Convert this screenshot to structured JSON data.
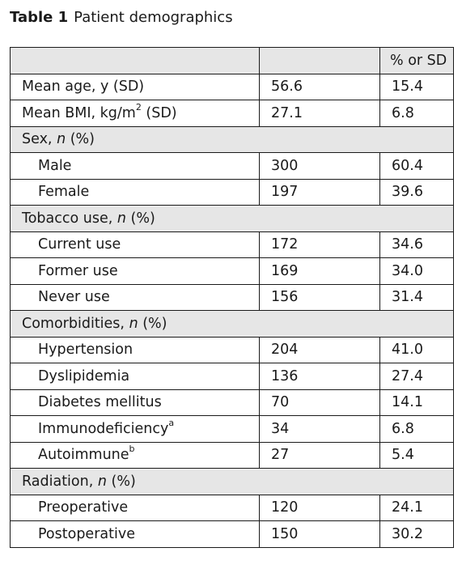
{
  "caption": {
    "number": "Table 1",
    "title": "Patient demographics"
  },
  "header": {
    "col1": "",
    "col2": "",
    "col3": "% or SD"
  },
  "rows": {
    "age": {
      "label": "Mean age, y (SD)",
      "value": "56.6",
      "pct": "15.4"
    },
    "bmi": {
      "label_pre": "Mean BMI, kg/m",
      "label_sup": "2",
      "label_post": " (SD)",
      "value": "27.1",
      "pct": "6.8"
    },
    "sex": {
      "label": "Sex, ",
      "n": "n",
      "suffix": " (%)"
    },
    "male": {
      "label": "Male",
      "value": "300",
      "pct": "60.4"
    },
    "female": {
      "label": "Female",
      "value": "197",
      "pct": "39.6"
    },
    "tobacco": {
      "label": "Tobacco use, ",
      "n": "n",
      "suffix": " (%)"
    },
    "current": {
      "label": "Current use",
      "value": "172",
      "pct": "34.6"
    },
    "former": {
      "label": "Former use",
      "value": "169",
      "pct": "34.0"
    },
    "never": {
      "label": "Never use",
      "value": "156",
      "pct": "31.4"
    },
    "comorb": {
      "label": "Comorbidities, ",
      "n": "n",
      "suffix": " (%)"
    },
    "htn": {
      "label": "Hypertension",
      "value": "204",
      "pct": "41.0"
    },
    "dyslip": {
      "label": "Dyslipidemia",
      "value": "136",
      "pct": "27.4"
    },
    "diabetes": {
      "label": "Diabetes mellitus",
      "value": "70",
      "pct": "14.1"
    },
    "immuno": {
      "label": "Immunodeficiency",
      "sup": "a",
      "value": "34",
      "pct": "6.8"
    },
    "autoimm": {
      "label": "Autoimmune",
      "sup": "b",
      "value": "27",
      "pct": "5.4"
    },
    "radiation": {
      "label": "Radiation, ",
      "n": "n",
      "suffix": " (%)"
    },
    "preop": {
      "label": "Preoperative",
      "value": "120",
      "pct": "24.1"
    },
    "postop": {
      "label": "Postoperative",
      "value": "150",
      "pct": "30.2"
    }
  }
}
